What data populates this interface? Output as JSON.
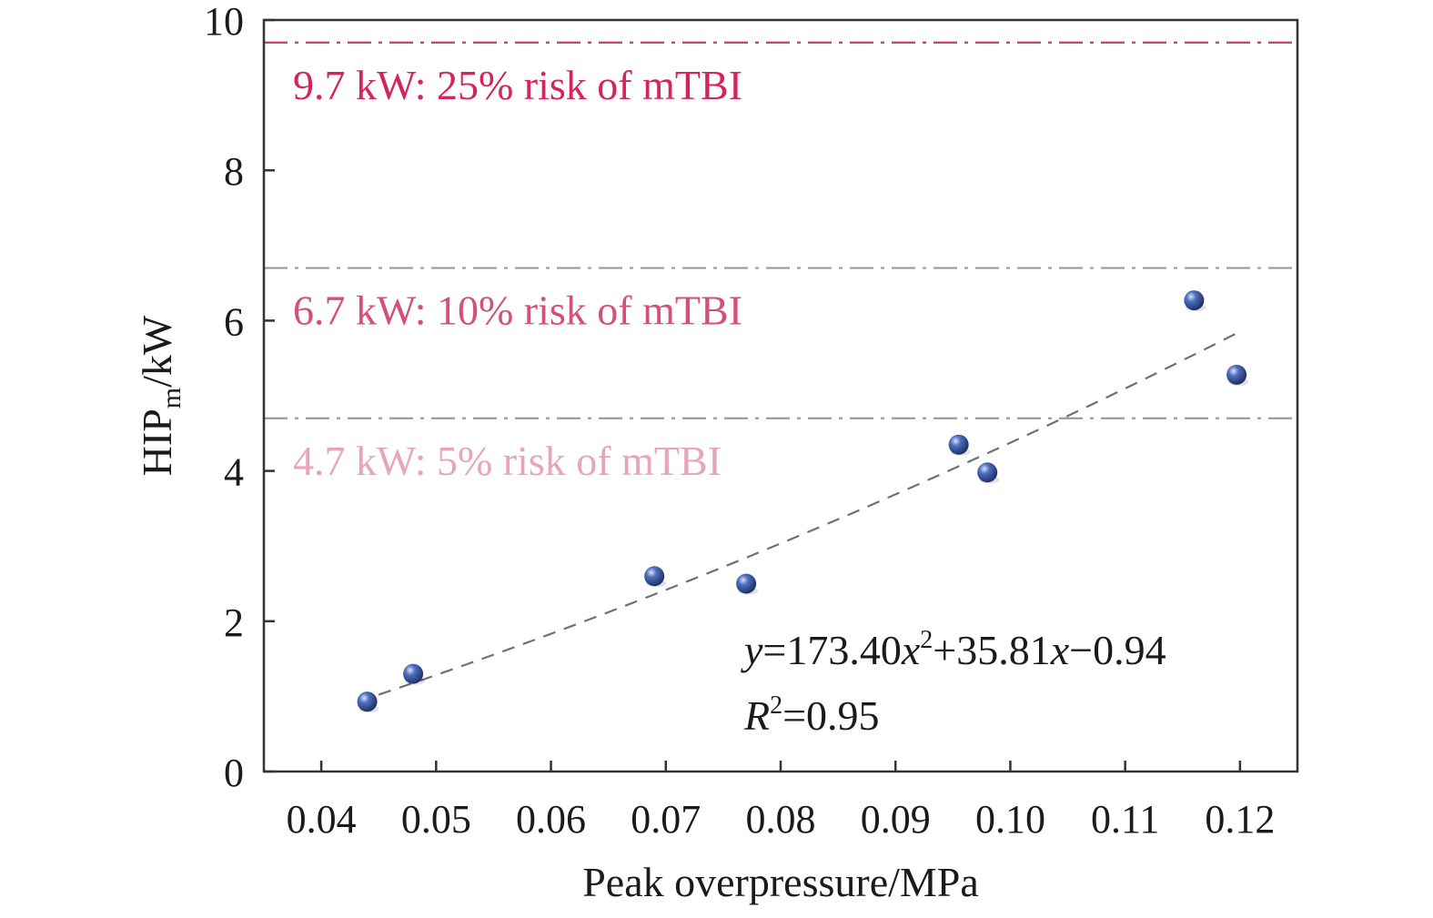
{
  "chart_data": {
    "type": "scatter",
    "xlabel": "Peak overpressure/MPa",
    "ylabel_main": "HIP",
    "ylabel_sub": "m",
    "ylabel_tail": "/kW",
    "xlim": [
      0.035,
      0.125
    ],
    "ylim": [
      0,
      10
    ],
    "x_ticks": [
      0.04,
      0.05,
      0.06,
      0.07,
      0.08,
      0.09,
      0.1,
      0.11,
      0.12
    ],
    "x_tick_labels": [
      "0.04",
      "0.05",
      "0.06",
      "0.07",
      "0.08",
      "0.09",
      "0.10",
      "0.11",
      "0.12"
    ],
    "y_ticks": [
      0,
      2,
      4,
      6,
      8,
      10
    ],
    "y_tick_labels": [
      "0",
      "2",
      "4",
      "6",
      "8",
      "10"
    ],
    "points": [
      {
        "x": 0.044,
        "y": 0.93
      },
      {
        "x": 0.048,
        "y": 1.3
      },
      {
        "x": 0.069,
        "y": 2.6
      },
      {
        "x": 0.077,
        "y": 2.5
      },
      {
        "x": 0.0955,
        "y": 4.35
      },
      {
        "x": 0.098,
        "y": 3.98
      },
      {
        "x": 0.116,
        "y": 6.27
      },
      {
        "x": 0.1197,
        "y": 5.28
      }
    ],
    "fit": {
      "a": 173.4,
      "b": 35.81,
      "c": -0.94,
      "x_range": [
        0.045,
        0.12
      ]
    },
    "equation": {
      "y_var": "y",
      "eq_coef": "=173.40",
      "x_var1": "x",
      "exp1": "2",
      "mid": "+35.81",
      "x_var2": "x",
      "tail": "−0.94",
      "r_var": "R",
      "r_exp": "2",
      "r_val": "=0.95"
    },
    "reference_lines": [
      {
        "y": 9.7,
        "label": "9.7 kW: 25% risk of mTBI",
        "color": "#d4245a"
      },
      {
        "y": 6.7,
        "label": "6.7 kW: 10% risk of mTBI",
        "color": "#d4507a"
      },
      {
        "y": 4.7,
        "label": "4.7 kW: 5% risk of mTBI",
        "color": "#e6a6b8"
      }
    ],
    "grid": false,
    "colors": {
      "point": "#3a5aa0",
      "fit_line": "#707070",
      "ref_line": "#9a9a9a",
      "axis": "#333333"
    }
  }
}
